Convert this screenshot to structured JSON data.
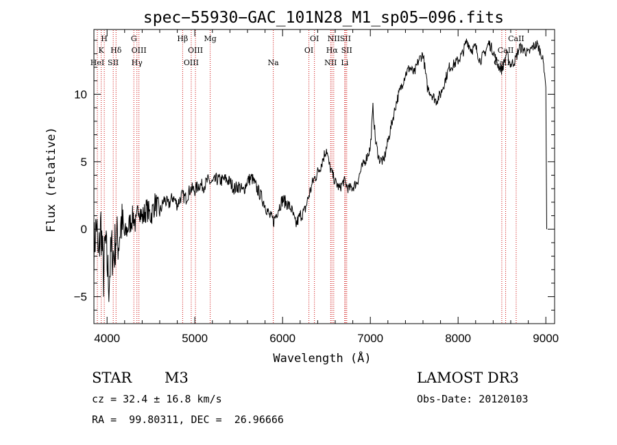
{
  "chart_data": {
    "type": "line",
    "title": "spec−55930−GAC_101N28_M1_sp05−096.fits",
    "xlabel": "Wavelength (Å)",
    "ylabel": "Flux (relative)",
    "xlim": [
      3850,
      9100
    ],
    "ylim": [
      -7,
      14.8
    ],
    "xticks": [
      4000,
      5000,
      6000,
      7000,
      8000,
      9000
    ],
    "xtick_labels": [
      "4000",
      "5000",
      "6000",
      "7000",
      "8000",
      "9000"
    ],
    "yticks": [
      -5,
      0,
      5,
      10
    ],
    "ytick_labels": [
      "−5",
      "0",
      "5",
      "10"
    ],
    "line_color": "#000000",
    "marker_color": "#cc0000",
    "series": [
      {
        "name": "flux",
        "x": [
          3850,
          3880,
          3900,
          3930,
          3960,
          3980,
          4000,
          4020,
          4050,
          4080,
          4100,
          4130,
          4160,
          4200,
          4250,
          4300,
          4330,
          4360,
          4400,
          4450,
          4500,
          4550,
          4600,
          4650,
          4700,
          4750,
          4800,
          4850,
          4900,
          4950,
          5000,
          5050,
          5100,
          5150,
          5200,
          5250,
          5300,
          5350,
          5400,
          5450,
          5500,
          5550,
          5600,
          5650,
          5700,
          5750,
          5800,
          5850,
          5900,
          5950,
          6000,
          6050,
          6100,
          6150,
          6200,
          6250,
          6300,
          6350,
          6400,
          6450,
          6500,
          6530,
          6560,
          6600,
          6650,
          6700,
          6750,
          6800,
          6850,
          6900,
          6950,
          7000,
          7030,
          7060,
          7100,
          7150,
          7200,
          7250,
          7300,
          7350,
          7400,
          7450,
          7500,
          7550,
          7600,
          7650,
          7700,
          7750,
          7800,
          7850,
          7900,
          7950,
          8000,
          8050,
          8100,
          8150,
          8200,
          8250,
          8300,
          8350,
          8400,
          8450,
          8500,
          8550,
          8600,
          8650,
          8700,
          8750,
          8800,
          8850,
          8900,
          8950,
          8980,
          9000,
          9010
        ],
        "y": [
          -1.5,
          0.5,
          -2.5,
          0.5,
          -3.5,
          -1.0,
          -2.5,
          -4.0,
          -1.5,
          -2.0,
          -0.5,
          -1.0,
          0.5,
          -0.5,
          0.3,
          1.0,
          0.2,
          1.8,
          0.8,
          1.5,
          1.0,
          2.0,
          1.2,
          2.2,
          1.8,
          2.4,
          1.8,
          2.5,
          2.3,
          3.0,
          2.9,
          3.3,
          3.2,
          3.6,
          3.4,
          3.7,
          3.6,
          3.7,
          3.5,
          3.0,
          3.2,
          2.8,
          3.6,
          3.8,
          3.1,
          2.5,
          1.8,
          1.0,
          0.6,
          1.5,
          2.2,
          1.9,
          1.5,
          0.3,
          1.0,
          1.3,
          2.5,
          3.6,
          4.2,
          5.0,
          6.0,
          4.8,
          4.2,
          3.5,
          3.0,
          3.6,
          3.0,
          3.1,
          3.5,
          4.5,
          5.2,
          6.0,
          9.0,
          6.5,
          5.2,
          5.0,
          6.5,
          8.0,
          9.5,
          10.5,
          11.5,
          12.0,
          11.5,
          12.5,
          13.0,
          10.5,
          10.0,
          9.5,
          10.0,
          11.0,
          12.0,
          12.2,
          12.5,
          13.0,
          14.0,
          13.3,
          13.5,
          12.5,
          13.0,
          13.8,
          13.2,
          12.2,
          11.8,
          13.0,
          12.2,
          12.5,
          13.5,
          13.3,
          13.0,
          13.5,
          13.7,
          13.0,
          12.0,
          10.5,
          0.0
        ]
      }
    ],
    "markers": [
      {
        "name": "HeI",
        "wl": 3889,
        "tier": 3
      },
      {
        "name": "K",
        "wl": 3933,
        "tier": 2
      },
      {
        "name": "H",
        "wl": 3968,
        "tier": 1
      },
      {
        "name": "SII",
        "wl": 4070,
        "tier": 3
      },
      {
        "name": "Hδ",
        "wl": 4102,
        "tier": 2
      },
      {
        "name": "G",
        "wl": 4305,
        "tier": 1
      },
      {
        "name": "Hγ",
        "wl": 4340,
        "tier": 3
      },
      {
        "name": "OIII",
        "wl": 4363,
        "tier": 2
      },
      {
        "name": "Hβ",
        "wl": 4861,
        "tier": 1
      },
      {
        "name": "OIII",
        "wl": 4959,
        "tier": 3
      },
      {
        "name": "OIII",
        "wl": 5007,
        "tier": 2
      },
      {
        "name": "Mg",
        "wl": 5175,
        "tier": 1
      },
      {
        "name": "Na",
        "wl": 5894,
        "tier": 3
      },
      {
        "name": "OI",
        "wl": 6300,
        "tier": 2
      },
      {
        "name": "OI",
        "wl": 6363,
        "tier": 1
      },
      {
        "name": "NII",
        "wl": 6548,
        "tier": 3
      },
      {
        "name": "NII",
        "wl": 6583,
        "tier": 1
      },
      {
        "name": "Hα",
        "wl": 6563,
        "tier": 2
      },
      {
        "name": "SII",
        "wl": 6716,
        "tier": 1
      },
      {
        "name": "SII",
        "wl": 6731,
        "tier": 2
      },
      {
        "name": "Li",
        "wl": 6708,
        "tier": 3
      },
      {
        "name": "CaII",
        "wl": 8498,
        "tier": 3
      },
      {
        "name": "CaII",
        "wl": 8542,
        "tier": 2
      },
      {
        "name": "CaII",
        "wl": 8662,
        "tier": 1
      }
    ]
  },
  "footer": {
    "object_class": "STAR",
    "subclass": "M3",
    "survey": "LAMOST DR3",
    "cz": "cz = 32.4 ± 16.8 km/s",
    "obs_date": "Obs-Date: 20120103",
    "coords": "RA =  99.80311, DEC =  26.96666"
  }
}
